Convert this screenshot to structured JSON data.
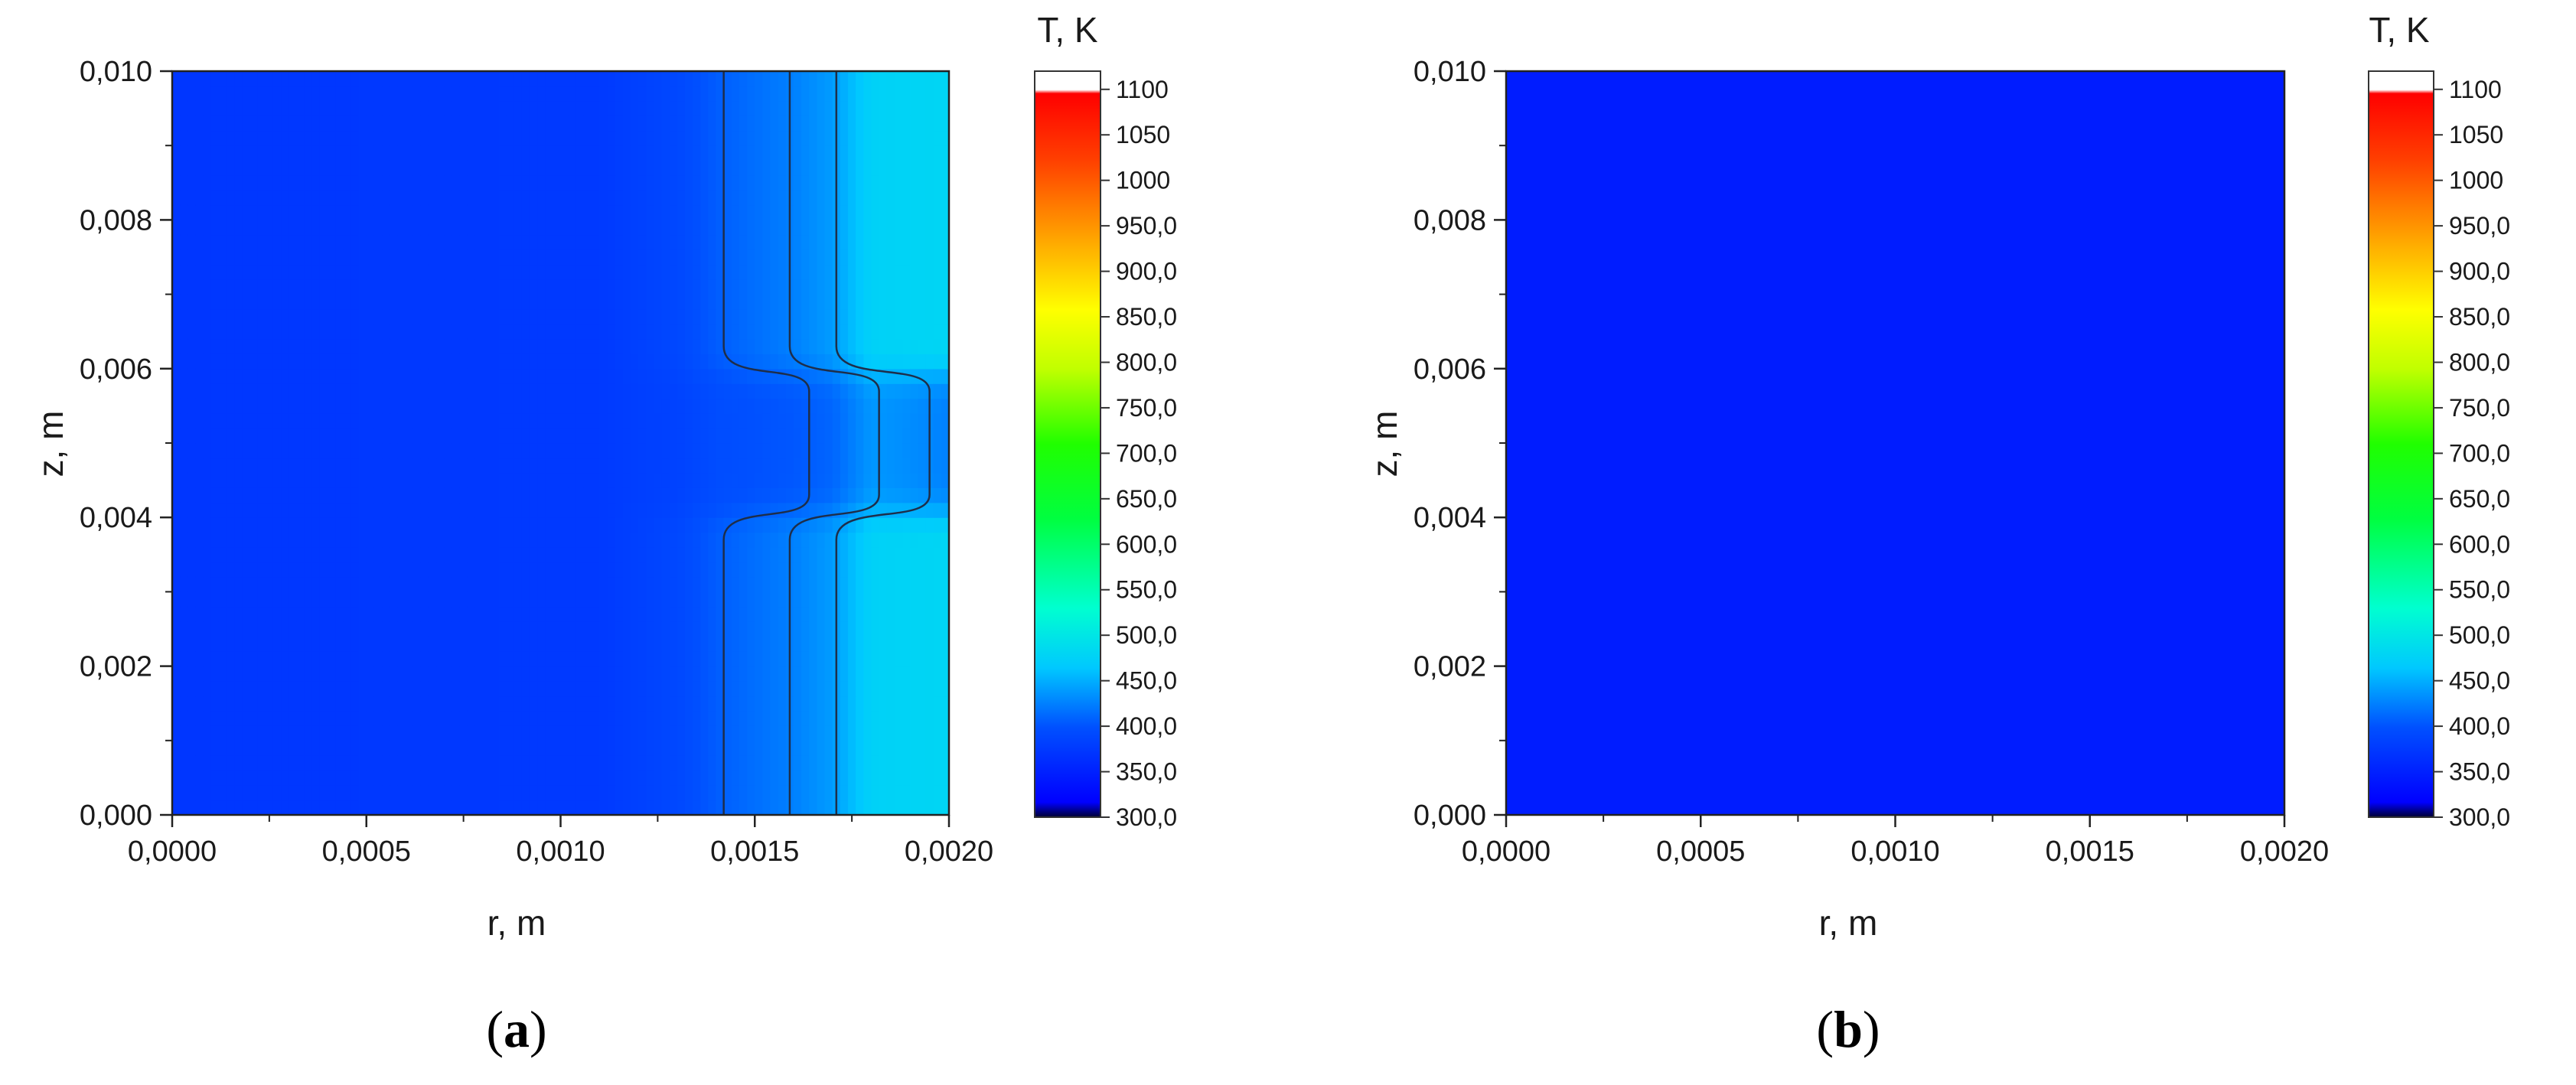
{
  "chart_data": [
    {
      "type": "heatmap",
      "panel_label": "(a)",
      "panel_letter": "a",
      "xlabel": "r, m",
      "ylabel": "z, m",
      "xlim": [
        0,
        0.002
      ],
      "ylim": [
        0,
        0.01
      ],
      "x_ticks": [
        0,
        0.0005,
        0.001,
        0.0015,
        0.002
      ],
      "x_tick_labels": [
        "0,0000",
        "0,0005",
        "0,0010",
        "0,0015",
        "0,0020"
      ],
      "y_ticks": [
        0,
        0.002,
        0.004,
        0.006,
        0.008,
        0.01
      ],
      "y_tick_labels": [
        "0,000",
        "0,002",
        "0,004",
        "0,006",
        "0,008",
        "0,010"
      ],
      "colorbar_title": "T, K",
      "colorbar_range": [
        300,
        1120
      ],
      "colorbar_ticks": [
        300,
        350,
        400,
        450,
        500,
        550,
        600,
        650,
        700,
        750,
        800,
        850,
        900,
        950,
        1000,
        1050,
        1100
      ],
      "colorbar_tick_labels": [
        "300,0",
        "350,0",
        "400,0",
        "450,0",
        "500,0",
        "550,0",
        "600,0",
        "650,0",
        "700,0",
        "750,0",
        "800,0",
        "850,0",
        "900,0",
        "950,0",
        "1000",
        "1050",
        "1100"
      ],
      "field": {
        "description_values": "temperature field T(r,z) in K",
        "base_T": 370,
        "profile_r": [
          0,
          0.0011,
          0.0013,
          0.0014,
          0.0015,
          0.0016,
          0.0017,
          0.0018,
          0.002
        ],
        "profile_T": [
          372,
          375,
          390,
          405,
          415,
          425,
          440,
          475,
          480
        ],
        "mid_z_center": 0.005,
        "mid_z_half_width": 0.001,
        "mid_T_drop": 55
      },
      "contours": [
        {
          "T": 405,
          "r_outer": 0.00142,
          "r_inner": 0.00164
        },
        {
          "T": 425,
          "r_outer": 0.00159,
          "r_inner": 0.00182
        },
        {
          "T": 440,
          "r_outer": 0.00171,
          "r_inner": 0.00195
        }
      ],
      "grid": false
    },
    {
      "type": "heatmap",
      "panel_label": "(b)",
      "panel_letter": "b",
      "xlabel": "r, m",
      "ylabel": "z, m",
      "xlim": [
        0,
        0.002
      ],
      "ylim": [
        0,
        0.01
      ],
      "x_ticks": [
        0,
        0.0005,
        0.001,
        0.0015,
        0.002
      ],
      "x_tick_labels": [
        "0,0000",
        "0,0005",
        "0,0010",
        "0,0015",
        "0,0020"
      ],
      "y_ticks": [
        0,
        0.002,
        0.004,
        0.006,
        0.008,
        0.01
      ],
      "y_tick_labels": [
        "0,000",
        "0,002",
        "0,004",
        "0,006",
        "0,008",
        "0,010"
      ],
      "colorbar_title": "T, K",
      "colorbar_range": [
        300,
        1120
      ],
      "colorbar_ticks": [
        300,
        350,
        400,
        450,
        500,
        550,
        600,
        650,
        700,
        750,
        800,
        850,
        900,
        950,
        1000,
        1050,
        1100
      ],
      "colorbar_tick_labels": [
        "300,0",
        "350,0",
        "400,0",
        "450,0",
        "500,0",
        "550,0",
        "600,0",
        "650,0",
        "700,0",
        "750,0",
        "800,0",
        "850,0",
        "900,0",
        "950,0",
        "1000",
        "1050",
        "1100"
      ],
      "field": {
        "uniform_T": 345
      },
      "contours": [],
      "grid": false
    }
  ],
  "colors": {
    "field_base": "#1450f0",
    "colormap": [
      "#000000",
      "#0000ff",
      "#0080ff",
      "#00e5ff",
      "#00ff00",
      "#ffff00",
      "#ff8000",
      "#ff0000",
      "#ffffff"
    ]
  }
}
